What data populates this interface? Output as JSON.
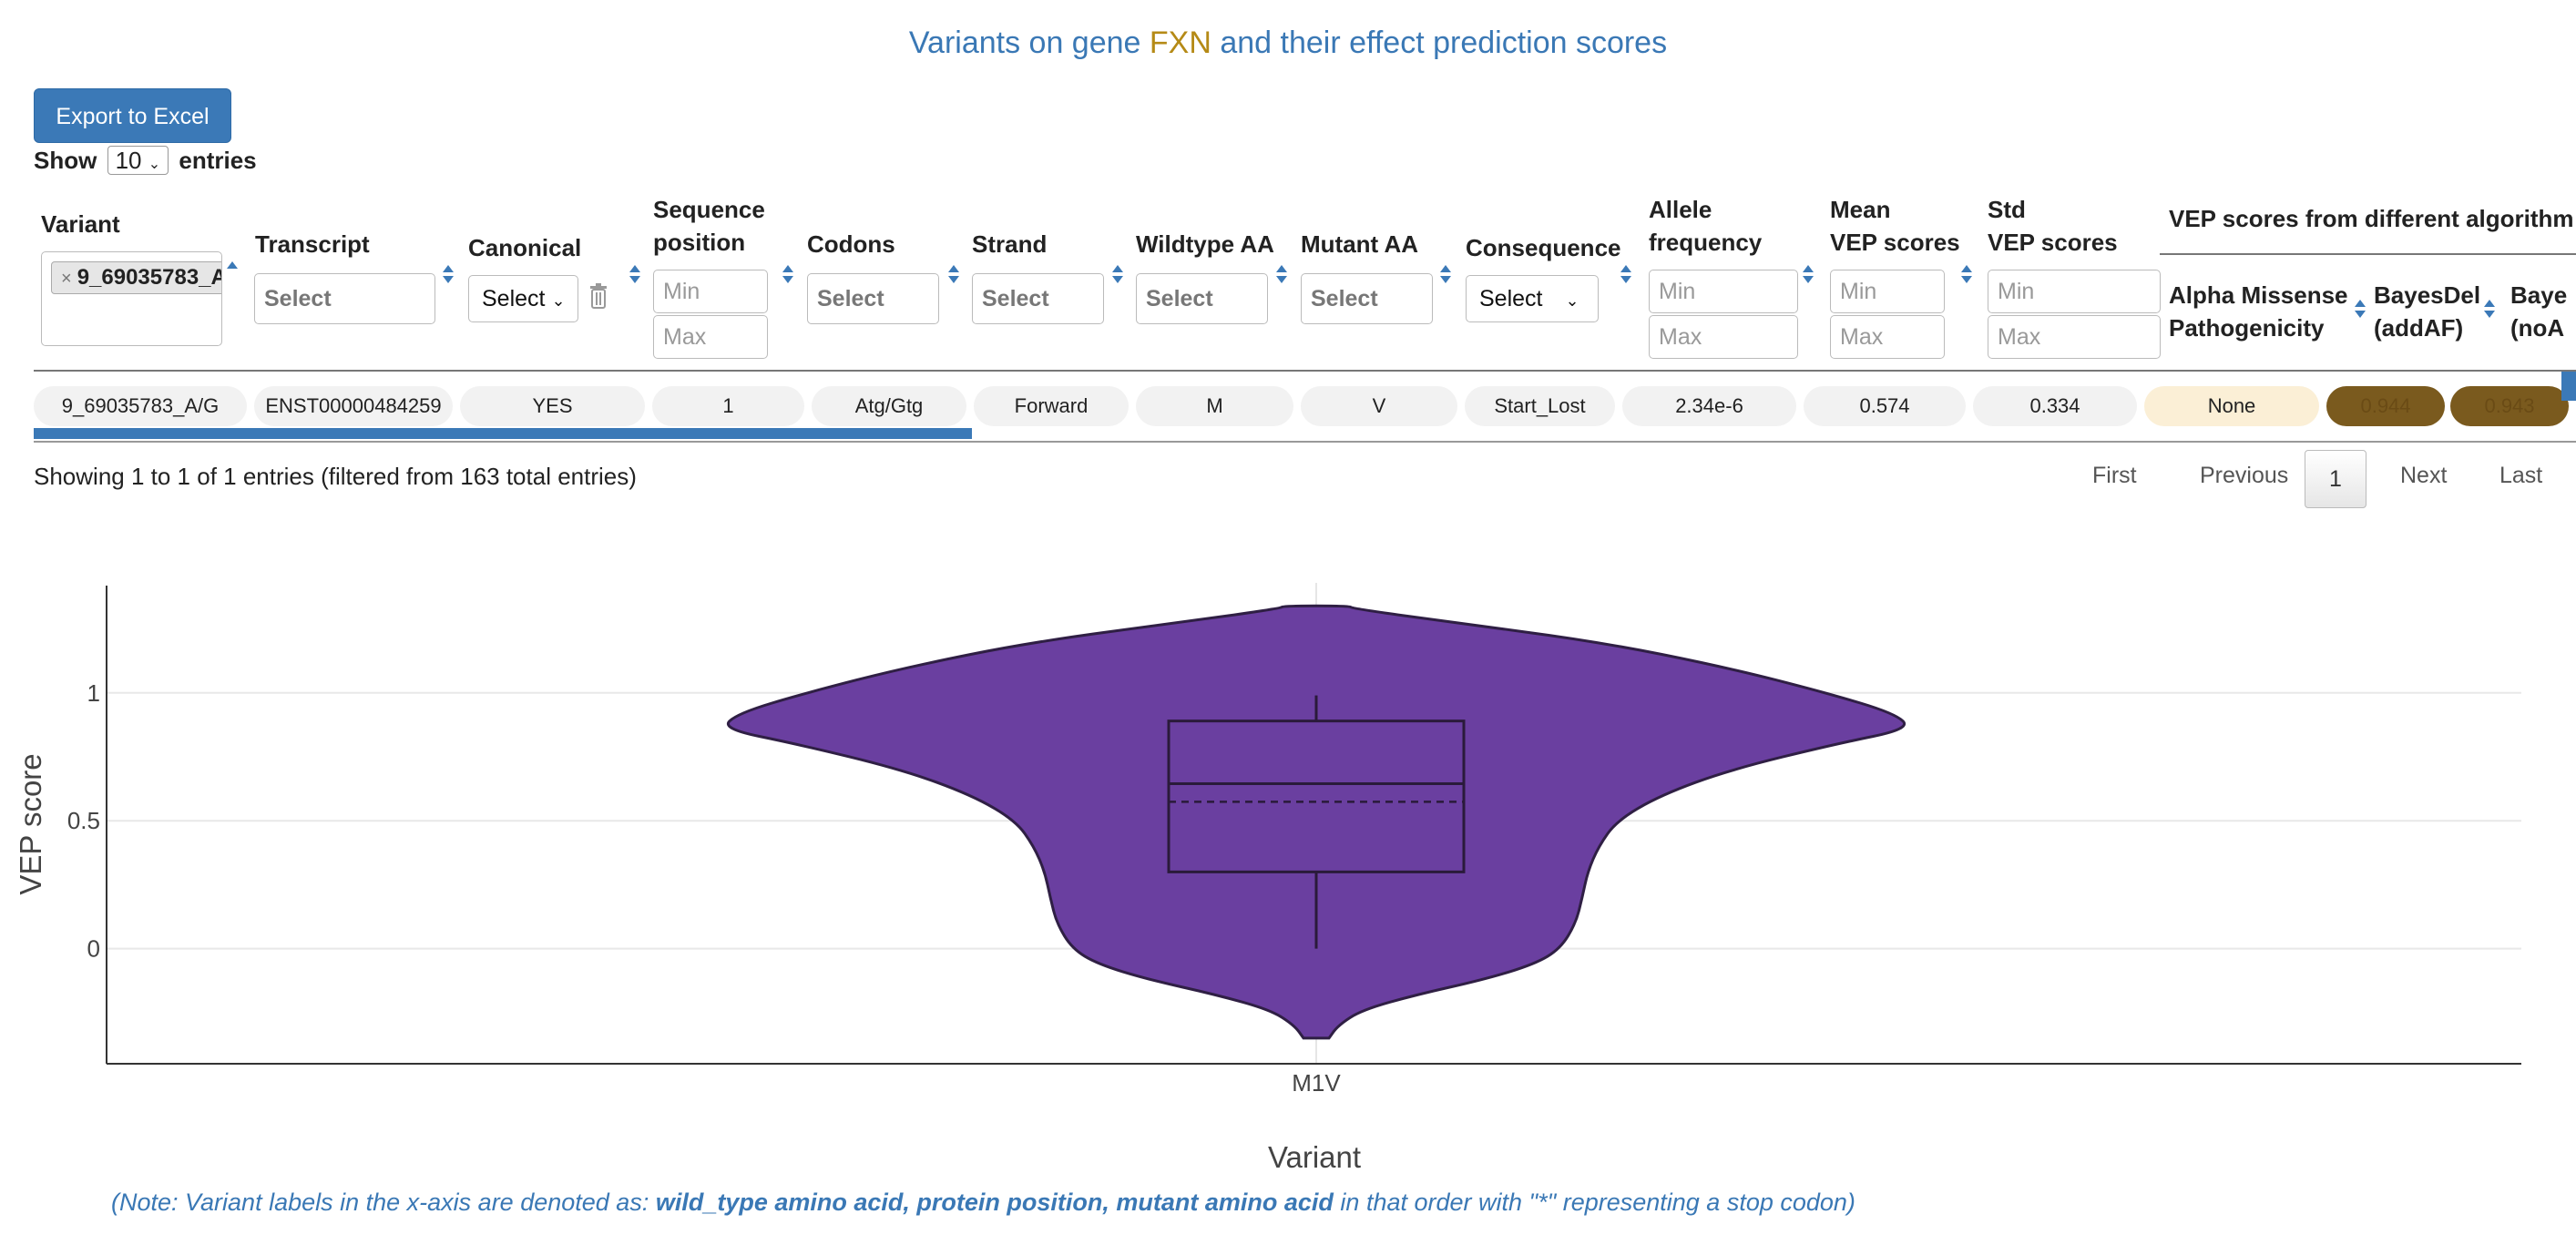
{
  "title": {
    "prefix": "Variants on gene ",
    "gene": "FXN",
    "suffix": " and their effect prediction scores"
  },
  "toolbar": {
    "export_label": "Export to Excel"
  },
  "length_menu": {
    "show": "Show",
    "value": "10",
    "entries": "entries"
  },
  "columns": {
    "variant": "Variant",
    "transcript": "Transcript",
    "canonical": "Canonical",
    "seq_pos_1": "Sequence",
    "seq_pos_2": "position",
    "codons": "Codons",
    "strand": "Strand",
    "wildtype": "Wildtype AA",
    "mutant": "Mutant AA",
    "consequence": "Consequence",
    "allele_1": "Allele",
    "allele_2": "frequency",
    "mean_1": "Mean",
    "mean_2": "VEP scores",
    "std_1": "Std",
    "std_2": "VEP scores",
    "vep_group": "VEP scores from different algorithm",
    "alpha_1": "Alpha Missense",
    "alpha_2": "Pathogenicity",
    "bayes_add_1": "BayesDel",
    "bayes_add_2": "(addAF)",
    "bayes_no_1": "Baye",
    "bayes_no_2": "(noA"
  },
  "filters": {
    "variant_tag": "9_69035783_A",
    "select_placeholder": "Select",
    "select_value": "Select",
    "min_placeholder": "Min",
    "max_placeholder": "Max"
  },
  "rows": [
    {
      "variant": "9_69035783_A/G",
      "transcript": "ENST00000484259",
      "canonical": "YES",
      "seq_pos": "1",
      "codons": "Atg/Gtg",
      "strand": "Forward",
      "wildtype": "M",
      "mutant": "V",
      "consequence": "Start_Lost",
      "allele_freq": "2.34e-6",
      "mean_vep": "0.574",
      "std_vep": "0.334",
      "alpha_missense": "None",
      "bayesdel_addaf": "0.944",
      "bayesdel_noaf": "0.943"
    }
  ],
  "info": "Showing 1 to 1 of 1 entries (filtered from 163 total entries)",
  "pagination": {
    "first": "First",
    "previous": "Previous",
    "current": "1",
    "next": "Next",
    "last": "Last"
  },
  "colors": {
    "violin": "#6a3fa0",
    "accent": "#3b79b7",
    "gene": "#b58a16",
    "score_high": "#7a5a1e",
    "score_none": "#fbefd6"
  },
  "chart_data": {
    "type": "violin",
    "ylabel": "VEP score",
    "xlabel": "Variant",
    "categories": [
      "M1V"
    ],
    "y_ticks": [
      0,
      0.5,
      1
    ],
    "ylim": [
      -0.45,
      1.43
    ],
    "violin_extent": [
      -0.35,
      1.34
    ],
    "box": {
      "q1": 0.3,
      "median": 0.645,
      "mean": 0.574,
      "q3": 0.89,
      "whisker_low": 0.0,
      "whisker_high": 0.99
    },
    "grid": true
  },
  "note": {
    "prefix": "(Note: Variant labels in the x-axis are denoted as: ",
    "bold": "wild_type amino acid, protein position, mutant amino acid",
    "suffix": " in that order with \"*\" representing a stop codon)"
  }
}
